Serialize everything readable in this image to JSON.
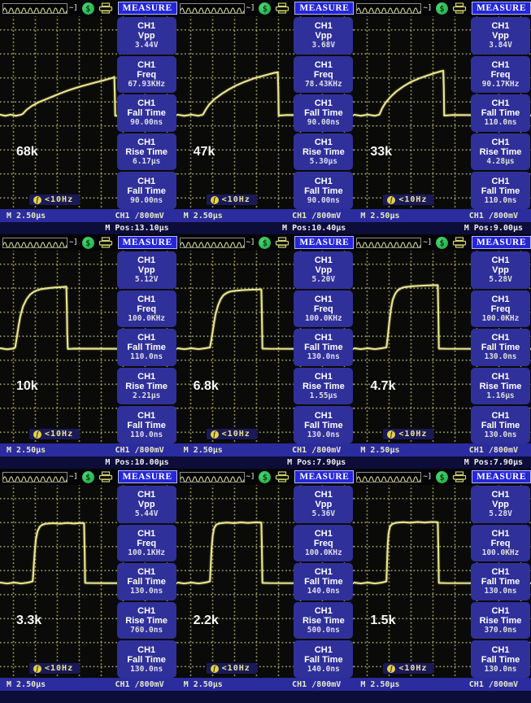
{
  "ui": {
    "menu_title": "MEASURE",
    "time_base": "M 2.50µs",
    "channel_scale": "CH1 /800mV",
    "trigger_readout": "<10Hz",
    "trigger_icon_glyph": "f",
    "acquire_icon_glyph": "$",
    "colors": {
      "menu_box_blue": "#30309a",
      "menu_title_blue": "#2426d8",
      "status_bar_navy": "#2b2c9e",
      "trace_yellow": "#e9e58e",
      "screen_black": "#0a0a08",
      "graticule_olive": "#b4b470",
      "trigger_text_yellow": "#e9e296"
    }
  },
  "panels": [
    {
      "label": "68k",
      "measurements": [
        {
          "ch": "CH1",
          "name": "Vpp",
          "value": "3.44V"
        },
        {
          "ch": "CH1",
          "name": "Freq",
          "value": "67.93KHz"
        },
        {
          "ch": "CH1",
          "name": "Fall Time",
          "value": "90.00ns"
        },
        {
          "ch": "CH1",
          "name": "Rise Time",
          "value": "6.17µs"
        },
        {
          "ch": "CH1",
          "name": "Fall Time",
          "value": "90.00ns"
        }
      ],
      "m_pos": "M Pos:13.10µs",
      "waveform": [
        [
          0,
          51
        ],
        [
          3,
          51.6
        ],
        [
          6,
          51
        ],
        [
          9,
          51.6
        ],
        [
          12,
          51
        ],
        [
          13,
          50.5
        ],
        [
          15,
          48.5
        ],
        [
          18,
          46.5
        ],
        [
          22,
          44.5
        ],
        [
          26,
          43
        ],
        [
          30,
          41.5
        ],
        [
          34,
          40
        ],
        [
          38,
          38.6
        ],
        [
          42,
          37.4
        ],
        [
          46,
          36.3
        ],
        [
          50,
          35.3
        ],
        [
          54,
          34.3
        ],
        [
          58,
          33.4
        ],
        [
          61,
          32.6
        ],
        [
          64,
          31.8
        ],
        [
          64.6,
          31.4
        ],
        [
          64.9,
          42
        ],
        [
          65.1,
          51.6
        ],
        [
          70,
          51.3
        ],
        [
          100,
          51.3
        ]
      ]
    },
    {
      "label": "47k",
      "measurements": [
        {
          "ch": "CH1",
          "name": "Vpp",
          "value": "3.68V"
        },
        {
          "ch": "CH1",
          "name": "Freq",
          "value": "78.43KHz"
        },
        {
          "ch": "CH1",
          "name": "Fall Time",
          "value": "90.00ns"
        },
        {
          "ch": "CH1",
          "name": "Rise Time",
          "value": "5.30µs"
        },
        {
          "ch": "CH1",
          "name": "Fall Time",
          "value": "90.00ns"
        }
      ],
      "m_pos": "M Pos:10.40µs",
      "waveform": [
        [
          0,
          51
        ],
        [
          4,
          51.6
        ],
        [
          8,
          51
        ],
        [
          12,
          51.6
        ],
        [
          14.5,
          51
        ],
        [
          16,
          48.5
        ],
        [
          18,
          45.8
        ],
        [
          21,
          43
        ],
        [
          25,
          40.3
        ],
        [
          29,
          38
        ],
        [
          33,
          36
        ],
        [
          38,
          34
        ],
        [
          43,
          32.3
        ],
        [
          48,
          31
        ],
        [
          52,
          30
        ],
        [
          55,
          29.3
        ],
        [
          56.8,
          29
        ],
        [
          57.1,
          39
        ],
        [
          57.3,
          51.5
        ],
        [
          62,
          51.2
        ],
        [
          100,
          51.4
        ]
      ]
    },
    {
      "label": "33k",
      "measurements": [
        {
          "ch": "CH1",
          "name": "Vpp",
          "value": "3.84V"
        },
        {
          "ch": "CH1",
          "name": "Freq",
          "value": "90.17KHz"
        },
        {
          "ch": "CH1",
          "name": "Fall Time",
          "value": "110.0ns"
        },
        {
          "ch": "CH1",
          "name": "Rise Time",
          "value": "4.28µs"
        },
        {
          "ch": "CH1",
          "name": "Fall Time",
          "value": "110.0ns"
        }
      ],
      "m_pos": "M Pos:9.00µs",
      "waveform": [
        [
          0,
          51
        ],
        [
          4,
          51.6
        ],
        [
          8,
          51
        ],
        [
          12,
          51.6
        ],
        [
          14.5,
          51
        ],
        [
          16,
          47.8
        ],
        [
          18,
          44.8
        ],
        [
          21,
          41.6
        ],
        [
          24,
          39
        ],
        [
          28,
          36.4
        ],
        [
          32,
          34.2
        ],
        [
          37,
          32.2
        ],
        [
          42,
          30.6
        ],
        [
          46,
          29.4
        ],
        [
          49,
          28.6
        ],
        [
          50.6,
          28.2
        ],
        [
          50.9,
          37
        ],
        [
          51.1,
          51.5
        ],
        [
          56,
          51.2
        ],
        [
          100,
          51.4
        ]
      ]
    },
    {
      "label": "10k",
      "measurements": [
        {
          "ch": "CH1",
          "name": "Vpp",
          "value": "5.12V"
        },
        {
          "ch": "CH1",
          "name": "Freq",
          "value": "100.0KHz"
        },
        {
          "ch": "CH1",
          "name": "Fall Time",
          "value": "110.0ns"
        },
        {
          "ch": "CH1",
          "name": "Rise Time",
          "value": "2.21µs"
        },
        {
          "ch": "CH1",
          "name": "Fall Time",
          "value": "110.0ns"
        }
      ],
      "m_pos": "M Pos:10.00µs",
      "waveform": [
        [
          0,
          50.6
        ],
        [
          4,
          51.2
        ],
        [
          8,
          50.7
        ],
        [
          8.6,
          50.2
        ],
        [
          9.5,
          45
        ],
        [
          10.5,
          39
        ],
        [
          11.5,
          34
        ],
        [
          13,
          29
        ],
        [
          15,
          25.2
        ],
        [
          17,
          22.8
        ],
        [
          19,
          21.4
        ],
        [
          21,
          20.6
        ],
        [
          23,
          20
        ],
        [
          27,
          19.5
        ],
        [
          31,
          19.1
        ],
        [
          35,
          18.9
        ],
        [
          37.5,
          18.7
        ],
        [
          37.8,
          30
        ],
        [
          38,
          43
        ],
        [
          38.3,
          51
        ],
        [
          42,
          50.8
        ],
        [
          100,
          51
        ]
      ]
    },
    {
      "label": "6.8k",
      "measurements": [
        {
          "ch": "CH1",
          "name": "Vpp",
          "value": "5.20V"
        },
        {
          "ch": "CH1",
          "name": "Freq",
          "value": "100.0KHz"
        },
        {
          "ch": "CH1",
          "name": "Fall Time",
          "value": "130.0ns"
        },
        {
          "ch": "CH1",
          "name": "Rise Time",
          "value": "1.55µs"
        },
        {
          "ch": "CH1",
          "name": "Fall Time",
          "value": "130.0ns"
        }
      ],
      "m_pos": "M Pos:7.90µs",
      "waveform": [
        [
          0,
          50.6
        ],
        [
          4,
          51.1
        ],
        [
          8,
          50.6
        ],
        [
          12,
          51.1
        ],
        [
          16,
          50.6
        ],
        [
          18.5,
          50.2
        ],
        [
          19.5,
          45
        ],
        [
          20.5,
          39
        ],
        [
          21.5,
          33.5
        ],
        [
          23,
          28.5
        ],
        [
          24.5,
          25.2
        ],
        [
          26,
          23.2
        ],
        [
          28,
          21.9
        ],
        [
          30,
          21.2
        ],
        [
          33,
          20.8
        ],
        [
          37,
          20.5
        ],
        [
          41,
          20.3
        ],
        [
          45,
          20.2
        ],
        [
          47.5,
          20.1
        ],
        [
          47.8,
          33
        ],
        [
          48.1,
          50.8
        ],
        [
          52,
          50.9
        ],
        [
          100,
          51
        ]
      ]
    },
    {
      "label": "4.7k",
      "measurements": [
        {
          "ch": "CH1",
          "name": "Vpp",
          "value": "5.28V"
        },
        {
          "ch": "CH1",
          "name": "Freq",
          "value": "100.0KHz"
        },
        {
          "ch": "CH1",
          "name": "Fall Time",
          "value": "130.0ns"
        },
        {
          "ch": "CH1",
          "name": "Rise Time",
          "value": "1.16µs"
        },
        {
          "ch": "CH1",
          "name": "Fall Time",
          "value": "130.0ns"
        }
      ],
      "m_pos": "M Pos:7.90µs",
      "waveform": [
        [
          0,
          50.6
        ],
        [
          4,
          51.1
        ],
        [
          8,
          50.6
        ],
        [
          12,
          51.1
        ],
        [
          16,
          50.6
        ],
        [
          18.5,
          50.2
        ],
        [
          19.3,
          44
        ],
        [
          20.1,
          37
        ],
        [
          21,
          30.5
        ],
        [
          22,
          25.5
        ],
        [
          23.5,
          22.2
        ],
        [
          25,
          20.5
        ],
        [
          27,
          19.4
        ],
        [
          29,
          18.9
        ],
        [
          33,
          18.5
        ],
        [
          38,
          18.2
        ],
        [
          43,
          18
        ],
        [
          47.5,
          17.9
        ],
        [
          47.8,
          32
        ],
        [
          48.1,
          50.8
        ],
        [
          52,
          50.9
        ],
        [
          100,
          51
        ]
      ]
    },
    {
      "label": "3.3k",
      "measurements": [
        {
          "ch": "CH1",
          "name": "Vpp",
          "value": "5.44V"
        },
        {
          "ch": "CH1",
          "name": "Freq",
          "value": "100.1KHz"
        },
        {
          "ch": "CH1",
          "name": "Fall Time",
          "value": "130.0ns"
        },
        {
          "ch": "CH1",
          "name": "Rise Time",
          "value": "760.0ns"
        },
        {
          "ch": "CH1",
          "name": "Fall Time",
          "value": "130.0ns"
        }
      ],
      "m_pos": "",
      "waveform": [
        [
          0,
          50.6
        ],
        [
          4,
          51.1
        ],
        [
          8,
          50.6
        ],
        [
          12,
          51.1
        ],
        [
          16,
          50.6
        ],
        [
          18.5,
          50
        ],
        [
          19,
          43
        ],
        [
          19.6,
          35
        ],
        [
          20.3,
          28
        ],
        [
          21.2,
          24
        ],
        [
          22.5,
          21.6
        ],
        [
          24,
          20.6
        ],
        [
          26,
          20.1
        ],
        [
          30,
          19.8
        ],
        [
          34,
          20.1
        ],
        [
          38,
          19.7
        ],
        [
          42,
          20
        ],
        [
          45,
          19.7
        ],
        [
          47.5,
          19.8
        ],
        [
          47.8,
          33
        ],
        [
          48.1,
          50.8
        ],
        [
          52,
          50.9
        ],
        [
          100,
          51
        ]
      ]
    },
    {
      "label": "2.2k",
      "measurements": [
        {
          "ch": "CH1",
          "name": "Vpp",
          "value": "5.36V"
        },
        {
          "ch": "CH1",
          "name": "Freq",
          "value": "100.0KHz"
        },
        {
          "ch": "CH1",
          "name": "Fall Time",
          "value": "140.0ns"
        },
        {
          "ch": "CH1",
          "name": "Rise Time",
          "value": "500.0ns"
        },
        {
          "ch": "CH1",
          "name": "Fall Time",
          "value": "140.0ns"
        }
      ],
      "m_pos": "",
      "waveform": [
        [
          0,
          50.6
        ],
        [
          4,
          51.1
        ],
        [
          8,
          50.6
        ],
        [
          12,
          51.1
        ],
        [
          16,
          50.6
        ],
        [
          18.5,
          50
        ],
        [
          18.9,
          42
        ],
        [
          19.4,
          33
        ],
        [
          20,
          26.5
        ],
        [
          20.8,
          22.5
        ],
        [
          22,
          20.6
        ],
        [
          24,
          19.9
        ],
        [
          28,
          19.5
        ],
        [
          32,
          19.8
        ],
        [
          36,
          19.4
        ],
        [
          40,
          19.7
        ],
        [
          44,
          19.4
        ],
        [
          47.5,
          19.5
        ],
        [
          47.8,
          33
        ],
        [
          48.1,
          50.8
        ],
        [
          52,
          50.9
        ],
        [
          100,
          51
        ]
      ]
    },
    {
      "label": "1.5k",
      "measurements": [
        {
          "ch": "CH1",
          "name": "Vpp",
          "value": "5.28V"
        },
        {
          "ch": "CH1",
          "name": "Freq",
          "value": "100.0KHz"
        },
        {
          "ch": "CH1",
          "name": "Fall Time",
          "value": "130.0ns"
        },
        {
          "ch": "CH1",
          "name": "Rise Time",
          "value": "370.0ns"
        },
        {
          "ch": "CH1",
          "name": "Fall Time",
          "value": "130.0ns"
        }
      ],
      "m_pos": "",
      "waveform": [
        [
          0,
          50.6
        ],
        [
          4,
          51.1
        ],
        [
          8,
          50.6
        ],
        [
          12,
          51.1
        ],
        [
          16,
          50.6
        ],
        [
          18.5,
          50
        ],
        [
          18.8,
          41
        ],
        [
          19.2,
          31
        ],
        [
          19.7,
          25
        ],
        [
          20.5,
          21.5
        ],
        [
          21.8,
          20.2
        ],
        [
          24,
          19.6
        ],
        [
          28,
          19.3
        ],
        [
          32,
          19.6
        ],
        [
          36,
          19.2
        ],
        [
          40,
          19.5
        ],
        [
          44,
          19.2
        ],
        [
          47.5,
          19.3
        ],
        [
          47.8,
          33
        ],
        [
          48.1,
          50.8
        ],
        [
          52,
          50.9
        ],
        [
          100,
          51
        ]
      ]
    }
  ]
}
